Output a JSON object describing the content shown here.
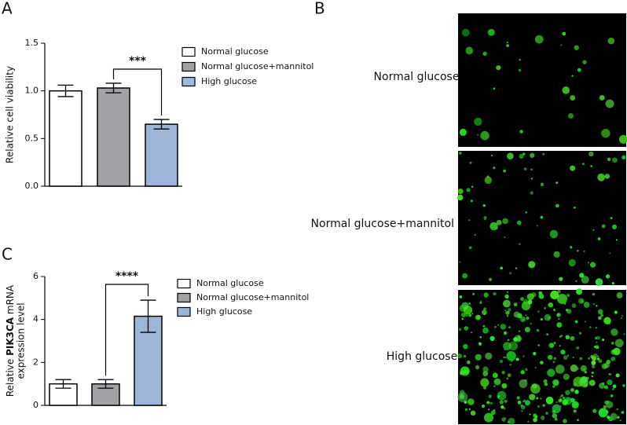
{
  "panels": {
    "a": "A",
    "b": "B",
    "c": "C"
  },
  "chart_data": [
    {
      "type": "bar",
      "ylabel": "Relative cell viability",
      "categories": [
        "Normal glucose",
        "Normal glucose+mannitol",
        "High glucose"
      ],
      "values": [
        1.0,
        1.03,
        0.65
      ],
      "errors": [
        0.06,
        0.05,
        0.05
      ],
      "colors": [
        "#ffffff",
        "#a2a2a6",
        "#9db5d6"
      ],
      "ylim": [
        0,
        1.5
      ],
      "yticks": [
        {
          "value": 0,
          "label": "0.0"
        },
        {
          "value": 0.5,
          "label": "0.5"
        },
        {
          "value": 1,
          "label": "1.0"
        },
        {
          "value": 1.5,
          "label": "1.5"
        }
      ],
      "annotation": "***",
      "legend": true
    },
    {
      "type": "bar",
      "ylabel": {
        "prefix": "Relative ",
        "gene": "PIK3CA",
        "suffix": " mRNA",
        "line2": "expression level"
      },
      "categories": [
        "Normal glucose",
        "Normal glucose+mannitol",
        "High glucose"
      ],
      "values": [
        1.0,
        1.0,
        4.15
      ],
      "errors": [
        0.2,
        0.2,
        0.75
      ],
      "colors": [
        "#ffffff",
        "#a2a2a6",
        "#9db5d6"
      ],
      "ylim": [
        0,
        6
      ],
      "yticks": [
        0,
        2,
        4,
        6
      ],
      "annotation": "****",
      "legend": true
    }
  ],
  "images": {
    "labels": [
      "Normal glucose",
      "Normal glucose+mannitol",
      "High glucose"
    ]
  }
}
